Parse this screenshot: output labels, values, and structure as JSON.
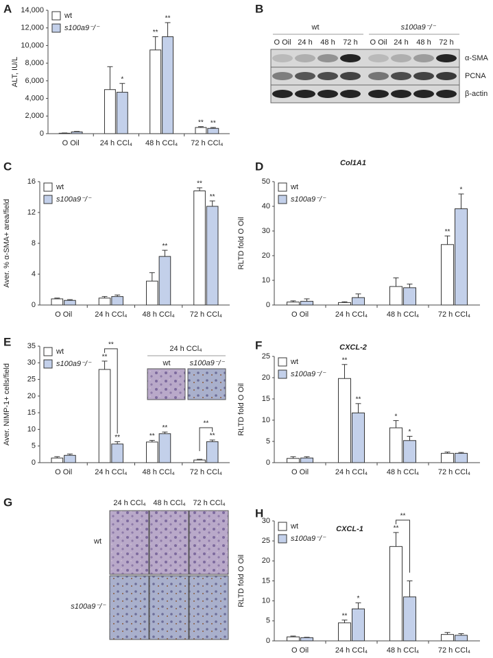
{
  "chart_data": [
    {
      "type": "bar",
      "panel": "A",
      "y_label": "ALT, IU/L",
      "categories": [
        "O Oil",
        "24 h CCl₄",
        "48 h CCl₄",
        "72 h CCl₄"
      ],
      "series": [
        {
          "name": "wt",
          "color": "#ffffff",
          "values": [
            50,
            5000,
            9500,
            700
          ],
          "errors": [
            30,
            2600,
            1500,
            100
          ],
          "significance": [
            null,
            null,
            "**",
            "**"
          ]
        },
        {
          "name": "s100a9⁻/⁻",
          "color": "#c3d0ea",
          "values": [
            200,
            4700,
            11000,
            600
          ],
          "errors": [
            50,
            1000,
            1600,
            100
          ],
          "significance": [
            null,
            "*",
            "**",
            "**"
          ]
        }
      ],
      "ylim": [
        0,
        14000
      ],
      "yticks": [
        0,
        {
          "value": 2000,
          "label": "2,000"
        },
        {
          "value": 4000,
          "label": "4,000"
        },
        {
          "value": 6000,
          "label": "6,000"
        },
        {
          "value": 8000,
          "label": "8,000"
        },
        {
          "value": 10000,
          "label": "10,000"
        },
        {
          "value": 12000,
          "label": "12,000"
        },
        {
          "value": 14000,
          "label": "14,000"
        }
      ],
      "legend": "upper left"
    },
    {
      "type": "bar",
      "panel": "C",
      "y_label": "Aver. % α-SMA+ area/field",
      "categories": [
        "O Oil",
        "24 h CCl₄",
        "48 h CCl₄",
        "72 h CCl₄"
      ],
      "series": [
        {
          "name": "wt",
          "color": "#ffffff",
          "values": [
            0.8,
            0.9,
            3.1,
            14.8
          ],
          "errors": [
            0.1,
            0.2,
            1.1,
            0.4
          ],
          "significance": [
            null,
            null,
            null,
            "**"
          ]
        },
        {
          "name": "s100a9⁻/⁻",
          "color": "#c3d0ea",
          "values": [
            0.6,
            1.1,
            6.3,
            12.8
          ],
          "errors": [
            0.1,
            0.2,
            0.8,
            0.7
          ],
          "significance": [
            null,
            null,
            "**",
            "**"
          ]
        }
      ],
      "ylim": [
        0,
        16
      ],
      "yticks": [
        0,
        4,
        8,
        12,
        16
      ],
      "legend": "upper left"
    },
    {
      "type": "bar",
      "panel": "D",
      "title": "Col1A1",
      "y_label": "RLTD fold O Oil",
      "categories": [
        "O Oil",
        "24 h CCl₄",
        "48 h CCl₄",
        "72 h CCl₄"
      ],
      "series": [
        {
          "name": "wt",
          "color": "#ffffff",
          "values": [
            1.2,
            1,
            7.5,
            24.5
          ],
          "errors": [
            0.5,
            0.3,
            3.5,
            3.5
          ],
          "significance": [
            null,
            null,
            null,
            "**"
          ]
        },
        {
          "name": "s100a9⁻/⁻",
          "color": "#c3d0ea",
          "values": [
            1.5,
            3,
            7,
            39
          ],
          "errors": [
            1,
            1.5,
            1.5,
            6
          ],
          "significance": [
            null,
            null,
            null,
            "*"
          ]
        }
      ],
      "ylim": [
        0,
        50
      ],
      "yticks": [
        0,
        10,
        20,
        30,
        40,
        50
      ],
      "legend": "upper left"
    },
    {
      "type": "bar",
      "panel": "E",
      "y_label": "Aver. NIMP-1+ cells/field",
      "categories": [
        "O Oil",
        "24 h CCl₄",
        "48 h CCl₄",
        "72 h CCl₄"
      ],
      "series": [
        {
          "name": "wt",
          "color": "#ffffff",
          "values": [
            1.4,
            28,
            6.2,
            0.8
          ],
          "errors": [
            0.4,
            2.5,
            0.5,
            0.2
          ],
          "significance": [
            null,
            "**",
            "**",
            null
          ]
        },
        {
          "name": "s100a9⁻/⁻",
          "color": "#c3d0ea",
          "values": [
            2.2,
            5.6,
            8.7,
            6.3
          ],
          "errors": [
            0.4,
            0.7,
            0.5,
            0.5
          ],
          "significance": [
            null,
            "**",
            "**",
            "**"
          ]
        }
      ],
      "comparisons": [
        {
          "category": "24 h CCl₄",
          "label": "**"
        },
        {
          "category": "72 h CCl₄",
          "label": "**"
        }
      ],
      "inset": {
        "title": "24 h CCl₄",
        "labels": [
          "wt",
          "s100a9⁻/⁻"
        ]
      },
      "ylim": [
        0,
        35
      ],
      "yticks": [
        0,
        5,
        10,
        15,
        20,
        25,
        30,
        35
      ],
      "legend": "upper left"
    },
    {
      "type": "bar",
      "panel": "F",
      "title": "CXCL-2",
      "y_label": "RLTD fold O Oil",
      "categories": [
        "O Oil",
        "24 h CCl₄",
        "48 h CCl₄",
        "72 h CCl₄"
      ],
      "series": [
        {
          "name": "wt",
          "color": "#ffffff",
          "values": [
            1,
            19.8,
            8.2,
            2.2
          ],
          "errors": [
            0.4,
            3.3,
            1.7,
            0.3
          ],
          "significance": [
            null,
            "**",
            "*",
            null
          ]
        },
        {
          "name": "s100a9⁻/⁻",
          "color": "#c3d0ea",
          "values": [
            1.1,
            11.7,
            5.2,
            2.2
          ],
          "errors": [
            0.3,
            2.2,
            1,
            0.2
          ],
          "significance": [
            null,
            "**",
            "*",
            null
          ]
        }
      ],
      "ylim": [
        0,
        25
      ],
      "yticks": [
        0,
        5,
        10,
        15,
        20,
        25
      ],
      "legend": "upper left"
    },
    {
      "type": "bar",
      "panel": "H",
      "title": "CXCL-1",
      "y_label": "RLTD fold O Oil",
      "categories": [
        "O Oil",
        "24 h CCl₄",
        "48 h CCl₄",
        "72 h CCl₄"
      ],
      "series": [
        {
          "name": "wt",
          "color": "#ffffff",
          "values": [
            1,
            4.5,
            23.6,
            1.6
          ],
          "errors": [
            0.2,
            0.7,
            3.5,
            0.5
          ],
          "significance": [
            null,
            "**",
            "**",
            null
          ]
        },
        {
          "name": "s100a9⁻/⁻",
          "color": "#c3d0ea",
          "values": [
            0.8,
            8,
            11,
            1.4
          ],
          "errors": [
            0.1,
            1.5,
            4,
            0.4
          ],
          "significance": [
            null,
            "*",
            null,
            null
          ]
        }
      ],
      "comparisons": [
        {
          "category": "48 h CCl₄",
          "label": "**"
        }
      ],
      "ylim": [
        0,
        30
      ],
      "yticks": [
        0,
        5,
        10,
        15,
        20,
        25,
        30
      ],
      "legend": "upper left"
    }
  ],
  "blot": {
    "panel": "B",
    "groups": [
      "wt",
      "s100a9⁻/⁻"
    ],
    "lanes": [
      "O Oil",
      "24 h",
      "48 h",
      "72 h",
      "O Oil",
      "24 h",
      "48 h",
      "72 h"
    ],
    "proteins": [
      "α-SMA",
      "PCNA",
      "β-actin"
    ]
  },
  "histology": {
    "panel": "G",
    "columns": [
      "24 h CCl₄",
      "48 h CCl₄",
      "72 h CCl₄"
    ],
    "rows": [
      "wt",
      "s100a9⁻/⁻"
    ]
  }
}
